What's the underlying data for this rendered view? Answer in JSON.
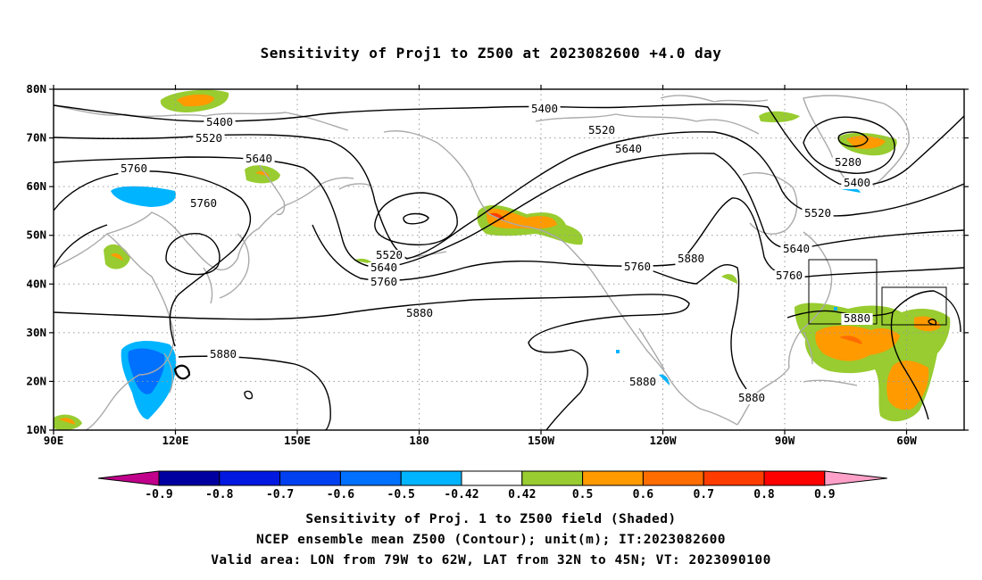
{
  "title": "Sensitivity of Proj1 to Z500 at 2023082600 +4.0 day",
  "map": {
    "lat_labels": [
      "80N",
      "70N",
      "60N",
      "50N",
      "40N",
      "30N",
      "20N",
      "10N"
    ],
    "lon_labels": [
      "90E",
      "120E",
      "150E",
      "180",
      "150W",
      "120W",
      "90W",
      "60W"
    ],
    "valid_box": {
      "lon_from": "79W",
      "lon_to": "62W",
      "lat_from": "32N",
      "lat_to": "45N"
    }
  },
  "contour_labels": [
    "5400",
    "5520",
    "5760",
    "5640",
    "5760",
    "5520",
    "5640",
    "5760",
    "5880",
    "5880",
    "5400",
    "5520",
    "5640",
    "5760",
    "5880",
    "5280",
    "5400",
    "5520",
    "5640",
    "5760",
    "5880",
    "5880",
    "5880"
  ],
  "colorbar": {
    "labels": [
      "-0.9",
      "-0.8",
      "-0.7",
      "-0.6",
      "-0.5",
      "-0.42",
      "0.42",
      "0.5",
      "0.6",
      "0.7",
      "0.8",
      "0.9"
    ],
    "colors": [
      "#c0008a",
      "#0000a0",
      "#0018e0",
      "#0040f0",
      "#0070ff",
      "#00b4ff",
      "#ffffff",
      "#98cc30",
      "#ff9a00",
      "#ff6c00",
      "#ff3c00",
      "#ff0000",
      "#ffa0c8"
    ]
  },
  "captions": [
    "Sensitivity of Proj. 1 to Z500 field (Shaded)",
    "NCEP ensemble mean Z500 (Contour); unit(m); IT:2023082600",
    "Valid area: LON from 79W to 62W, LAT from 32N to 45N; VT: 2023090100"
  ]
}
